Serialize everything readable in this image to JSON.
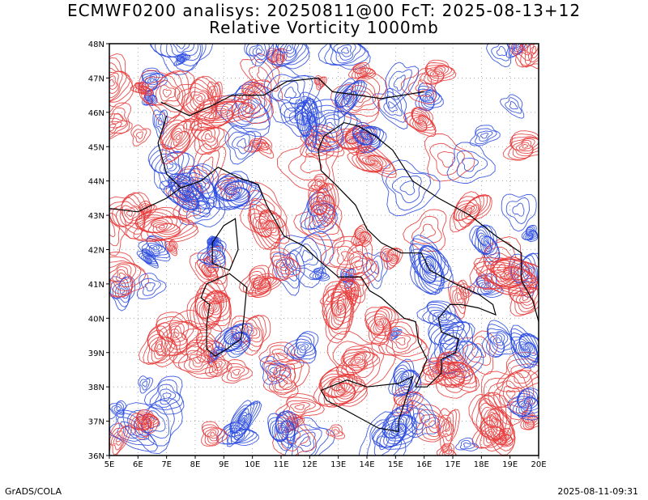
{
  "header": {
    "title_line1": "ECMWF0200 analisys: 20250811@00 FcT: 2025-08-13+12",
    "title_line2": "Relative Vorticity 1000mb"
  },
  "map": {
    "lon_range": [
      5,
      20
    ],
    "lat_range": [
      36,
      48
    ],
    "lon_ticks": [
      "5E",
      "6E",
      "7E",
      "8E",
      "9E",
      "10E",
      "11E",
      "12E",
      "13E",
      "14E",
      "15E",
      "16E",
      "17E",
      "18E",
      "19E",
      "20E"
    ],
    "lat_ticks": [
      "36N",
      "37N",
      "38N",
      "39N",
      "40N",
      "41N",
      "42N",
      "43N",
      "44N",
      "45N",
      "46N",
      "47N",
      "48N"
    ],
    "positive_color": "#e83a3a",
    "negative_color": "#2a4ae0",
    "coastline_color": "#000000",
    "grid": "dotted"
  },
  "footer": {
    "left": "GrADS/COLA",
    "right": "2025-08-11-09:31"
  }
}
